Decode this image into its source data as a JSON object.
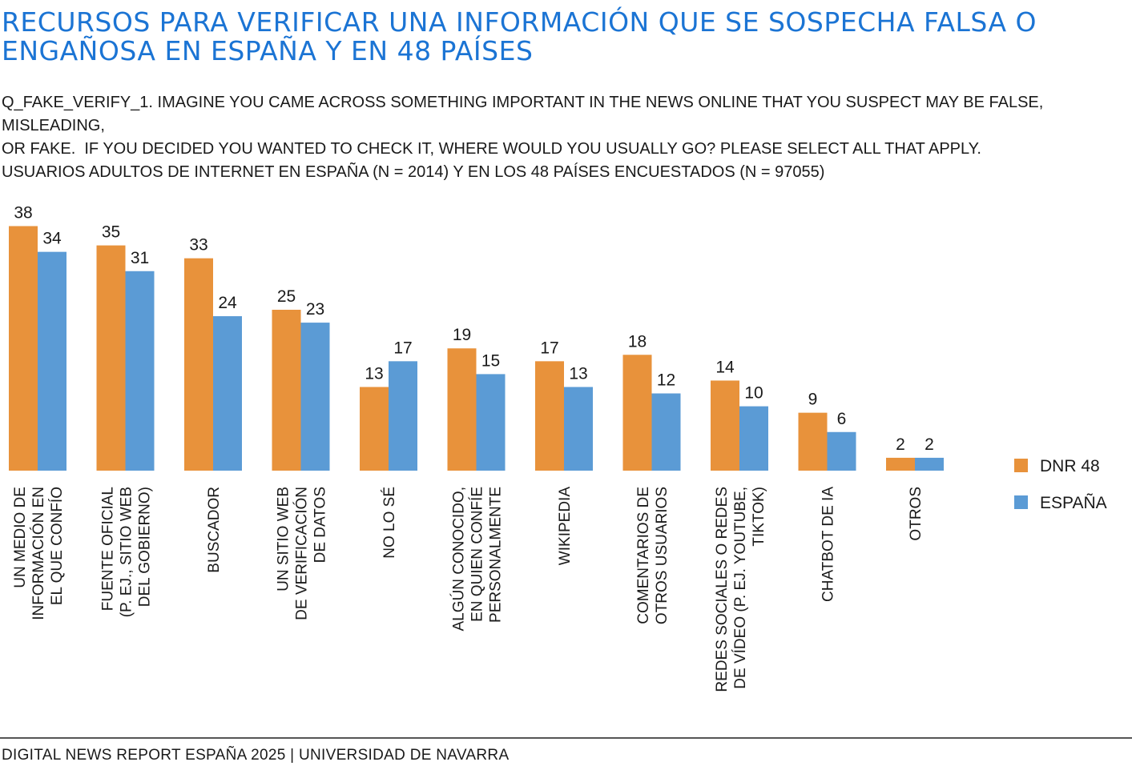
{
  "title": {
    "line1": "RECURSOS PARA VERIFICAR UNA INFORMACIÓN QUE SE SOSPECHA FALSA O",
    "line2": "ENGAÑOSA EN ESPAÑA Y EN 48 PAÍSES"
  },
  "subtitle": {
    "line1": "Q_FAKE_VERIFY_1. IMAGINE YOU CAME ACROSS SOMETHING IMPORTANT IN THE NEWS ONLINE THAT YOU SUSPECT MAY BE FALSE, MISLEADING,",
    "line2": "OR FAKE.  IF YOU DECIDED YOU WANTED TO CHECK IT, WHERE WOULD YOU USUALLY GO? PLEASE SELECT ALL THAT APPLY.",
    "line3": "USUARIOS ADULTOS DE INTERNET EN ESPAÑA (N = 2014) Y EN LOS 48 PAÍSES ENCUESTADOS (N = 97055)"
  },
  "footer": "DIGITAL NEWS REPORT ESPAÑA 2025 | UNIVERSIDAD DE NAVARRA",
  "chart_data": {
    "type": "bar",
    "categories": [
      [
        "UN MEDIO DE",
        "INFORMACIÓN EN",
        "EL QUE CONFÍO"
      ],
      [
        "FUENTE OFICIAL",
        "(P. EJ., SITIO WEB",
        "DEL GOBIERNO)"
      ],
      [
        "BUSCADOR"
      ],
      [
        "UN SITIO WEB",
        "DE VERIFICACIÓN",
        "DE DATOS"
      ],
      [
        "NO LO SÉ"
      ],
      [
        "ALGÚN CONOCIDO,",
        "EN QUIEN CONFÍE",
        "PERSONALMENTE"
      ],
      [
        "WIKIPEDIA"
      ],
      [
        "COMENTARIOS DE",
        "OTROS USUARIOS"
      ],
      [
        "REDES SOCIALES O REDES",
        "DE VÍDEO (P. EJ. YOUTUBE,",
        "TIKTOK)"
      ],
      [
        "CHATBOT DE IA"
      ],
      [
        "OTROS"
      ]
    ],
    "series": [
      {
        "name": "DNR 48",
        "color": "#e8923b",
        "values": [
          38,
          35,
          33,
          25,
          13,
          19,
          17,
          18,
          14,
          9,
          2
        ]
      },
      {
        "name": "ESPAÑA",
        "color": "#5b9bd5",
        "values": [
          34,
          31,
          24,
          23,
          17,
          15,
          13,
          12,
          10,
          6,
          2
        ]
      }
    ],
    "ylim": [
      0,
      40
    ],
    "grid": false,
    "legend_position": "right"
  }
}
